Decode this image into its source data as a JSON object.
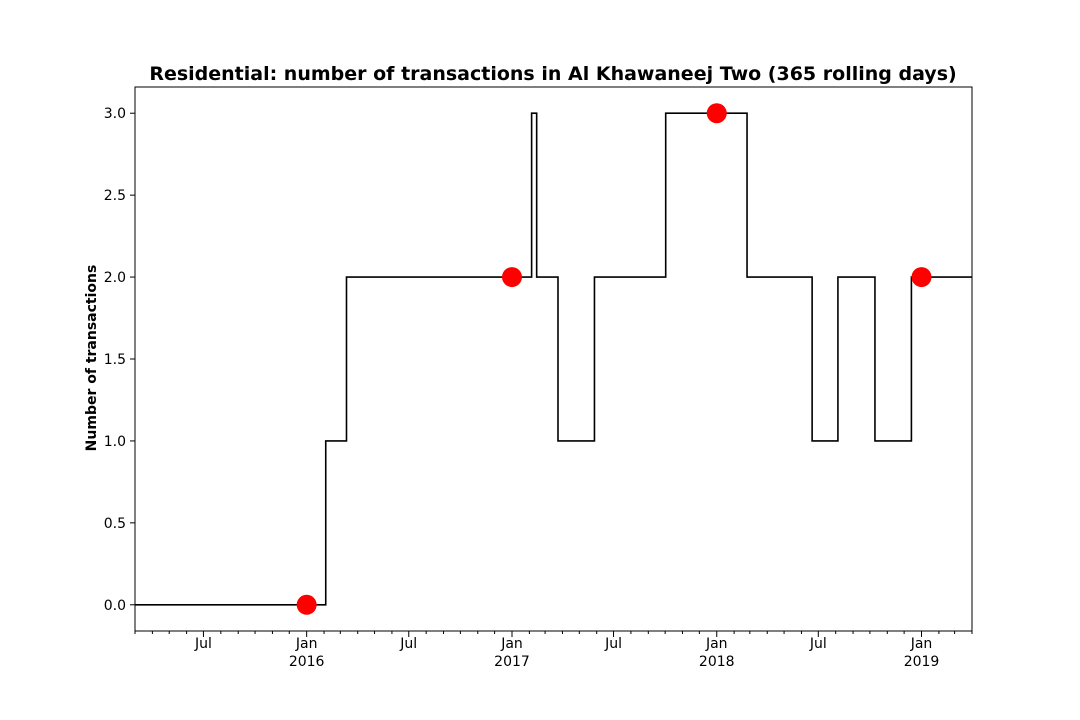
{
  "chart_data": {
    "type": "line",
    "title": "Residential: number of transactions in Al Khawaneej Two (365 rolling days)",
    "xlabel": "",
    "ylabel": "Number of transactions",
    "xlim": [
      "2015-03-01",
      "2019-04-01"
    ],
    "ylim": [
      -0.16,
      3.16
    ],
    "grid": false,
    "legend": "none",
    "y_ticks": [
      {
        "value": 0.0,
        "label": "0.0"
      },
      {
        "value": 0.5,
        "label": "0.5"
      },
      {
        "value": 1.0,
        "label": "1.0"
      },
      {
        "value": 1.5,
        "label": "1.5"
      },
      {
        "value": 2.0,
        "label": "2.0"
      },
      {
        "value": 2.5,
        "label": "2.5"
      },
      {
        "value": 3.0,
        "label": "3.0"
      }
    ],
    "x_ticks": [
      {
        "date": "2015-07-01",
        "label": "Jul",
        "sublabel": ""
      },
      {
        "date": "2016-01-01",
        "label": "Jan",
        "sublabel": "2016"
      },
      {
        "date": "2016-07-01",
        "label": "Jul",
        "sublabel": ""
      },
      {
        "date": "2017-01-01",
        "label": "Jan",
        "sublabel": "2017"
      },
      {
        "date": "2017-07-01",
        "label": "Jul",
        "sublabel": ""
      },
      {
        "date": "2018-01-01",
        "label": "Jan",
        "sublabel": "2018"
      },
      {
        "date": "2018-07-01",
        "label": "Jul",
        "sublabel": ""
      },
      {
        "date": "2019-01-01",
        "label": "Jan",
        "sublabel": "2019"
      }
    ],
    "series": [
      {
        "style": "step",
        "color": "#000000",
        "x": [
          "2015-03-01",
          "2016-02-04",
          "2016-02-04",
          "2016-03-12",
          "2016-03-12",
          "2017-02-05",
          "2017-02-05",
          "2017-02-14",
          "2017-02-14",
          "2017-03-24",
          "2017-03-24",
          "2017-05-28",
          "2017-05-28",
          "2017-10-02",
          "2017-10-02",
          "2018-02-24",
          "2018-02-24",
          "2018-06-20",
          "2018-06-20",
          "2018-08-05",
          "2018-08-05",
          "2018-10-10",
          "2018-10-10",
          "2018-12-14",
          "2018-12-14",
          "2019-04-01"
        ],
        "y": [
          0,
          0,
          1,
          1,
          2,
          2,
          3,
          3,
          2,
          2,
          1,
          1,
          2,
          2,
          3,
          3,
          2,
          2,
          1,
          1,
          2,
          2,
          1,
          1,
          2,
          2
        ]
      },
      {
        "style": "markers",
        "color": "#ff0000",
        "x": [
          "2016-01-01",
          "2017-01-01",
          "2018-01-01",
          "2019-01-01"
        ],
        "y": [
          0,
          2,
          3,
          2
        ]
      }
    ]
  }
}
